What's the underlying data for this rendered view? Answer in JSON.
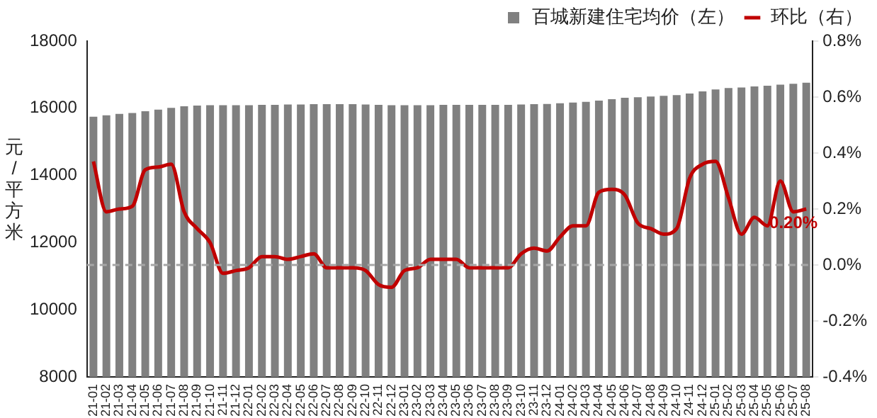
{
  "chart_data": {
    "type": "bar",
    "ylabel": "元/平方米",
    "legend": "top",
    "categories": [
      "21-01",
      "21-02",
      "21-03",
      "21-04",
      "21-05",
      "21-06",
      "21-07",
      "21-08",
      "21-09",
      "21-10",
      "21-11",
      "21-12",
      "22-01",
      "22-02",
      "22-03",
      "22-04",
      "22-05",
      "22-06",
      "22-07",
      "22-08",
      "22-09",
      "22-10",
      "22-11",
      "22-12",
      "23-01",
      "23-02",
      "23-03",
      "23-04",
      "23-05",
      "23-06",
      "23-07",
      "23-08",
      "23-09",
      "23-10",
      "23-11",
      "23-12",
      "24-01",
      "24-02",
      "24-03",
      "24-04",
      "24-05",
      "24-06",
      "24-07",
      "24-08",
      "24-09",
      "24-10",
      "24-11",
      "24-12",
      "25-01",
      "25-02",
      "25-03",
      "25-04",
      "25-05",
      "25-06",
      "25-07",
      "25-08"
    ],
    "series": [
      {
        "name": "百城新建住宅均价（左）",
        "color": "#808080",
        "values": [
          15750,
          15790,
          15830,
          15860,
          15910,
          15960,
          16010,
          16060,
          16080,
          16090,
          16090,
          16090,
          16090,
          16100,
          16100,
          16110,
          16110,
          16120,
          16120,
          16120,
          16120,
          16110,
          16100,
          16090,
          16090,
          16090,
          16090,
          16100,
          16100,
          16100,
          16100,
          16100,
          16100,
          16110,
          16120,
          16130,
          16150,
          16170,
          16190,
          16230,
          16270,
          16310,
          16330,
          16350,
          16370,
          16390,
          16440,
          16500,
          16560,
          16600,
          16620,
          16650,
          16670,
          16700,
          16730,
          16760
        ]
      },
      {
        "name": "环比（右）",
        "type": "line",
        "axis": "y2",
        "color": "#c00000",
        "values": [
          0.37,
          0.19,
          0.2,
          0.21,
          0.34,
          0.35,
          0.36,
          0.19,
          0.13,
          0.08,
          -0.03,
          -0.02,
          -0.01,
          0.03,
          0.03,
          0.02,
          0.03,
          0.04,
          -0.01,
          -0.01,
          -0.01,
          -0.02,
          -0.07,
          -0.08,
          -0.02,
          -0.01,
          0.02,
          0.02,
          0.02,
          -0.01,
          -0.01,
          -0.01,
          -0.01,
          0.04,
          0.06,
          0.05,
          0.1,
          0.14,
          0.14,
          0.26,
          0.27,
          0.25,
          0.15,
          0.13,
          0.11,
          0.13,
          0.31,
          0.36,
          0.37,
          0.24,
          0.11,
          0.17,
          0.14,
          0.3,
          0.19,
          0.2
        ]
      }
    ],
    "ylim": [
      8000,
      18000
    ],
    "yticks": [
      8000,
      10000,
      12000,
      14000,
      16000,
      18000
    ],
    "y2lim": [
      -0.4,
      0.8
    ],
    "y2ticks": [
      {
        "value": -0.4,
        "label": "-0.4%"
      },
      {
        "value": -0.2,
        "label": "-0.2%"
      },
      {
        "value": 0,
        "label": "0.0%"
      },
      {
        "value": 0.2,
        "label": "0.2%"
      },
      {
        "value": 0.4,
        "label": "0.4%"
      },
      {
        "value": 0.6,
        "label": "0.6%"
      },
      {
        "value": 0.8,
        "label": "0.8%"
      }
    ],
    "ref_lines": [
      {
        "axis": "y2",
        "value": 0,
        "color": "#a6a6a6",
        "line_style": "dashed"
      }
    ],
    "annotations": [
      "0.20%"
    ],
    "grid": false
  }
}
